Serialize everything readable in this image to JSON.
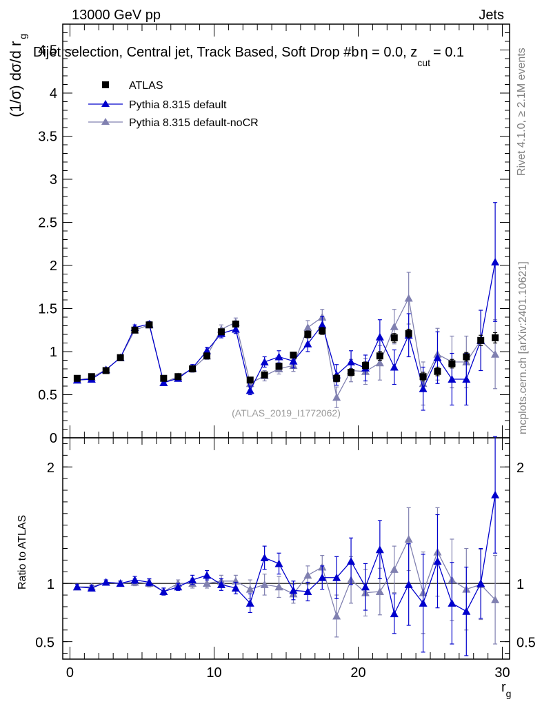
{
  "header": {
    "left": "13000 GeV pp",
    "right": "Jets"
  },
  "title": {
    "main": "Dijet selection, Central jet, Track Based, Soft Drop #b",
    "eta": "η = 0.0, z",
    "cut": "cut",
    "tail": "= 0.1"
  },
  "side_labels": {
    "rivet": "Rivet 4.1.0, ≥ 2.1M events",
    "mcplots": "mcplots.cern.ch [arXiv:2401.10621]"
  },
  "watermark": "(ATLAS_2019_I1772062)",
  "legend": [
    "ATLAS",
    "Pythia 8.315 default",
    "Pythia 8.315 default-noCR"
  ],
  "colors": {
    "data": "#000000",
    "pythia": "#0000cc",
    "nocr": "#8080b0",
    "watermark": "#999999",
    "side": "#808080"
  },
  "chart_data": {
    "type": "scatter",
    "x": [
      0.5,
      1.5,
      2.5,
      3.5,
      4.5,
      5.5,
      6.5,
      7.5,
      8.5,
      9.5,
      10.5,
      11.5,
      12.5,
      13.5,
      14.5,
      15.5,
      16.5,
      17.5,
      18.5,
      19.5,
      20.5,
      21.5,
      22.5,
      23.5,
      24.5,
      25.5,
      26.5,
      27.5,
      28.5,
      29.5
    ],
    "xlim": [
      -0.5,
      30.5
    ],
    "main": {
      "ylabel": "(1/σ) dσ/d r",
      "ylabel_sub": "g",
      "ylim": [
        0,
        4.8
      ],
      "ticks": [
        {
          "v": 0,
          "label": "0"
        },
        {
          "v": 0.5,
          "label": "0.5"
        },
        {
          "v": 1,
          "label": "1"
        },
        {
          "v": 1.5,
          "label": "1.5"
        },
        {
          "v": 2,
          "label": "2"
        },
        {
          "v": 2.5,
          "label": "2.5"
        },
        {
          "v": 3,
          "label": "3"
        },
        {
          "v": 3.5,
          "label": "3.5"
        },
        {
          "v": 4,
          "label": "4"
        },
        {
          "v": 4.5,
          "label": "4.5"
        }
      ],
      "series": [
        {
          "name": "ATLAS",
          "marker": "square",
          "values": [
            0.69,
            0.71,
            0.78,
            0.93,
            1.25,
            1.31,
            0.69,
            0.71,
            0.8,
            0.95,
            1.23,
            1.32,
            0.67,
            0.73,
            0.83,
            0.96,
            1.2,
            1.24,
            0.69,
            0.76,
            0.84,
            0.95,
            1.16,
            1.21,
            0.71,
            0.77,
            0.86,
            0.94,
            1.13,
            1.16
          ],
          "errors": [
            0.02,
            0.02,
            0.02,
            0.02,
            0.03,
            0.03,
            0.02,
            0.02,
            0.02,
            0.03,
            0.03,
            0.03,
            0.03,
            0.03,
            0.03,
            0.03,
            0.04,
            0.04,
            0.04,
            0.04,
            0.04,
            0.05,
            0.05,
            0.05,
            0.05,
            0.05,
            0.05,
            0.05,
            0.06,
            0.06
          ]
        },
        {
          "name": "Pythia 8.315 default",
          "marker": "triangle",
          "values": [
            0.67,
            0.68,
            0.79,
            0.93,
            1.28,
            1.32,
            0.64,
            0.69,
            0.81,
            1.01,
            1.21,
            1.26,
            0.55,
            0.88,
            0.94,
            0.89,
            1.09,
            1.31,
            0.73,
            0.88,
            0.81,
            1.17,
            0.82,
            1.19,
            0.57,
            0.93,
            0.68,
            0.68,
            1.13,
            2.04
          ],
          "errors": [
            0.02,
            0.02,
            0.02,
            0.02,
            0.03,
            0.03,
            0.03,
            0.03,
            0.04,
            0.04,
            0.05,
            0.05,
            0.05,
            0.06,
            0.07,
            0.08,
            0.09,
            0.1,
            0.12,
            0.13,
            0.15,
            0.2,
            0.2,
            0.25,
            0.25,
            0.3,
            0.3,
            0.3,
            0.35,
            0.69
          ]
        },
        {
          "name": "Pythia 8.315 default-noCR",
          "marker": "triangle",
          "values": [
            0.67,
            0.7,
            0.79,
            0.93,
            1.25,
            1.31,
            0.64,
            0.71,
            0.8,
            0.95,
            1.26,
            1.34,
            0.63,
            0.72,
            0.8,
            0.84,
            1.28,
            1.4,
            0.47,
            0.78,
            0.77,
            0.87,
            1.29,
            1.62,
            0.63,
            0.97,
            0.88,
            0.88,
            1.13,
            0.97
          ],
          "errors": [
            0.02,
            0.02,
            0.02,
            0.02,
            0.03,
            0.03,
            0.03,
            0.03,
            0.04,
            0.04,
            0.05,
            0.05,
            0.05,
            0.06,
            0.06,
            0.07,
            0.08,
            0.09,
            0.12,
            0.13,
            0.15,
            0.2,
            0.2,
            0.3,
            0.25,
            0.3,
            0.3,
            0.3,
            0.35,
            0.4
          ]
        }
      ]
    },
    "ratio": {
      "ylabel": "Ratio to ATLAS",
      "ylim": [
        0.35,
        2.25
      ],
      "ticks": [
        {
          "v": 0.5,
          "label": "0.5"
        },
        {
          "v": 1,
          "label": "1"
        },
        {
          "v": 2,
          "label": "2"
        }
      ],
      "series": [
        {
          "name": "Pythia 8.315 default",
          "values": [
            0.97,
            0.96,
            1.01,
            1.0,
            1.03,
            1.01,
            0.93,
            0.97,
            1.03,
            1.07,
            0.99,
            0.96,
            0.83,
            1.22,
            1.17,
            0.94,
            0.93,
            1.05,
            1.05,
            1.19,
            0.97,
            1.29,
            0.74,
            0.99,
            0.83,
            1.19,
            0.83,
            0.76,
            1.0,
            1.76
          ],
          "errors": [
            0.02,
            0.02,
            0.02,
            0.02,
            0.03,
            0.03,
            0.03,
            0.03,
            0.04,
            0.04,
            0.05,
            0.05,
            0.08,
            0.1,
            0.09,
            0.08,
            0.08,
            0.1,
            0.18,
            0.2,
            0.2,
            0.25,
            0.17,
            0.35,
            0.42,
            0.4,
            0.35,
            0.38,
            0.3,
            0.5
          ]
        },
        {
          "name": "Pythia 8.315 default-noCR",
          "values": [
            0.97,
            0.97,
            1.01,
            1.0,
            1.01,
            1.0,
            0.93,
            1.0,
            1.0,
            1.0,
            1.02,
            1.02,
            0.95,
            0.99,
            0.97,
            0.91,
            1.07,
            1.14,
            0.72,
            1.03,
            0.92,
            0.93,
            1.12,
            1.38,
            0.92,
            1.27,
            1.03,
            0.95,
            0.99,
            0.86
          ],
          "errors": [
            0.02,
            0.02,
            0.02,
            0.02,
            0.03,
            0.03,
            0.03,
            0.03,
            0.04,
            0.04,
            0.05,
            0.05,
            0.08,
            0.09,
            0.09,
            0.08,
            0.08,
            0.1,
            0.18,
            0.2,
            0.2,
            0.2,
            0.2,
            0.27,
            0.35,
            0.38,
            0.35,
            0.35,
            0.3,
            0.38
          ]
        }
      ]
    },
    "xaxis": {
      "label": "r",
      "label_sub": "g",
      "ticks": [
        {
          "v": 0,
          "label": "0"
        },
        {
          "v": 10,
          "label": "10"
        },
        {
          "v": 20,
          "label": "20"
        },
        {
          "v": 30,
          "label": "30"
        }
      ]
    }
  }
}
